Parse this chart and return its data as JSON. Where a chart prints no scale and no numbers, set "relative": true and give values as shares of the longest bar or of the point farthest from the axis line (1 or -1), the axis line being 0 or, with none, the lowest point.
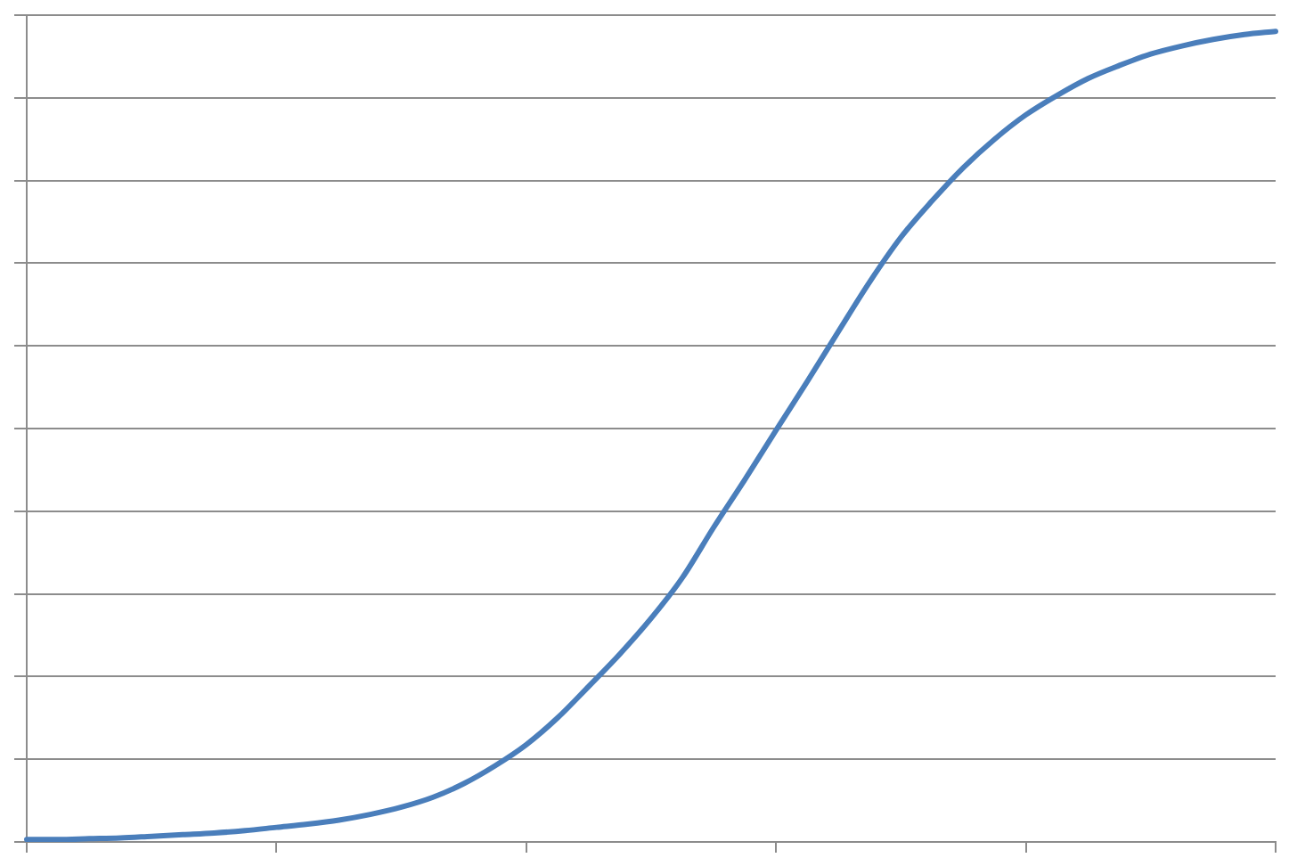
{
  "chart_data": {
    "type": "line",
    "relative": true,
    "tick_labels": false,
    "grid": "y",
    "color": "#4a7ebb",
    "categories": [
      null,
      null,
      null,
      null,
      null,
      null,
      null,
      null,
      null,
      null,
      null,
      null,
      null,
      null,
      null,
      null,
      null,
      null,
      null,
      null,
      null,
      null,
      null,
      null,
      null,
      null,
      null,
      null,
      null,
      null,
      null,
      null,
      null,
      null,
      null,
      null,
      null,
      null,
      null,
      null,
      null
    ],
    "values": [
      0.003,
      0.003,
      0.004,
      0.005,
      0.007,
      0.009,
      0.011,
      0.014,
      0.018,
      0.022,
      0.027,
      0.034,
      0.043,
      0.055,
      0.072,
      0.094,
      0.12,
      0.153,
      0.192,
      0.232,
      0.276,
      0.326,
      0.388,
      0.447,
      0.508,
      0.568,
      0.63,
      0.691,
      0.746,
      0.791,
      0.832,
      0.867,
      0.897,
      0.921,
      0.942,
      0.958,
      0.972,
      0.982,
      0.99,
      0.996,
      1
    ]
  }
}
